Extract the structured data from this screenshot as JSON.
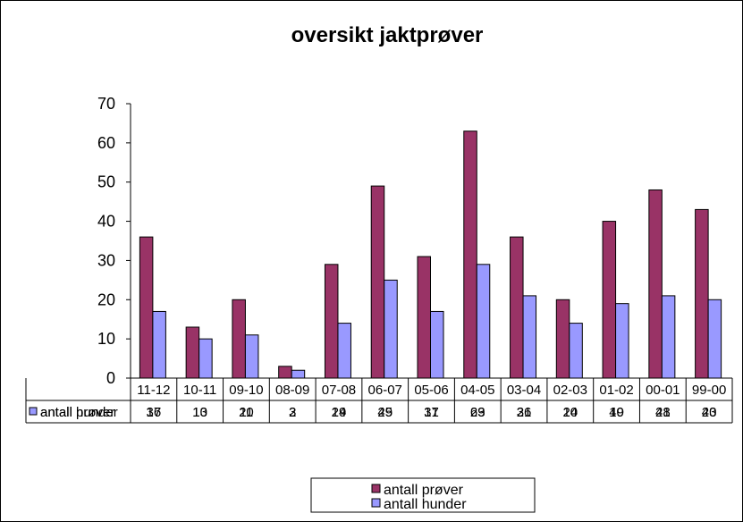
{
  "chart_data": {
    "type": "bar",
    "title": "oversikt jaktprøver",
    "categories": [
      "11-12",
      "10-11",
      "09-10",
      "08-09",
      "07-08",
      "06-07",
      "05-06",
      "04-05",
      "03-04",
      "02-03",
      "01-02",
      "00-01",
      "99-00"
    ],
    "series": [
      {
        "name": "antall prøver",
        "color": "#993366",
        "values": [
          36,
          13,
          20,
          3,
          29,
          49,
          31,
          63,
          36,
          20,
          40,
          48,
          43
        ]
      },
      {
        "name": "antall hunder",
        "color": "#9999FF",
        "values": [
          17,
          10,
          11,
          2,
          14,
          25,
          17,
          29,
          21,
          14,
          19,
          21,
          20
        ]
      }
    ],
    "ylim": [
      0,
      70
    ],
    "yticks": [
      0,
      10,
      20,
      30,
      40,
      50,
      60,
      70
    ],
    "grid": false,
    "data_table": true,
    "legend_position": "bottom"
  }
}
